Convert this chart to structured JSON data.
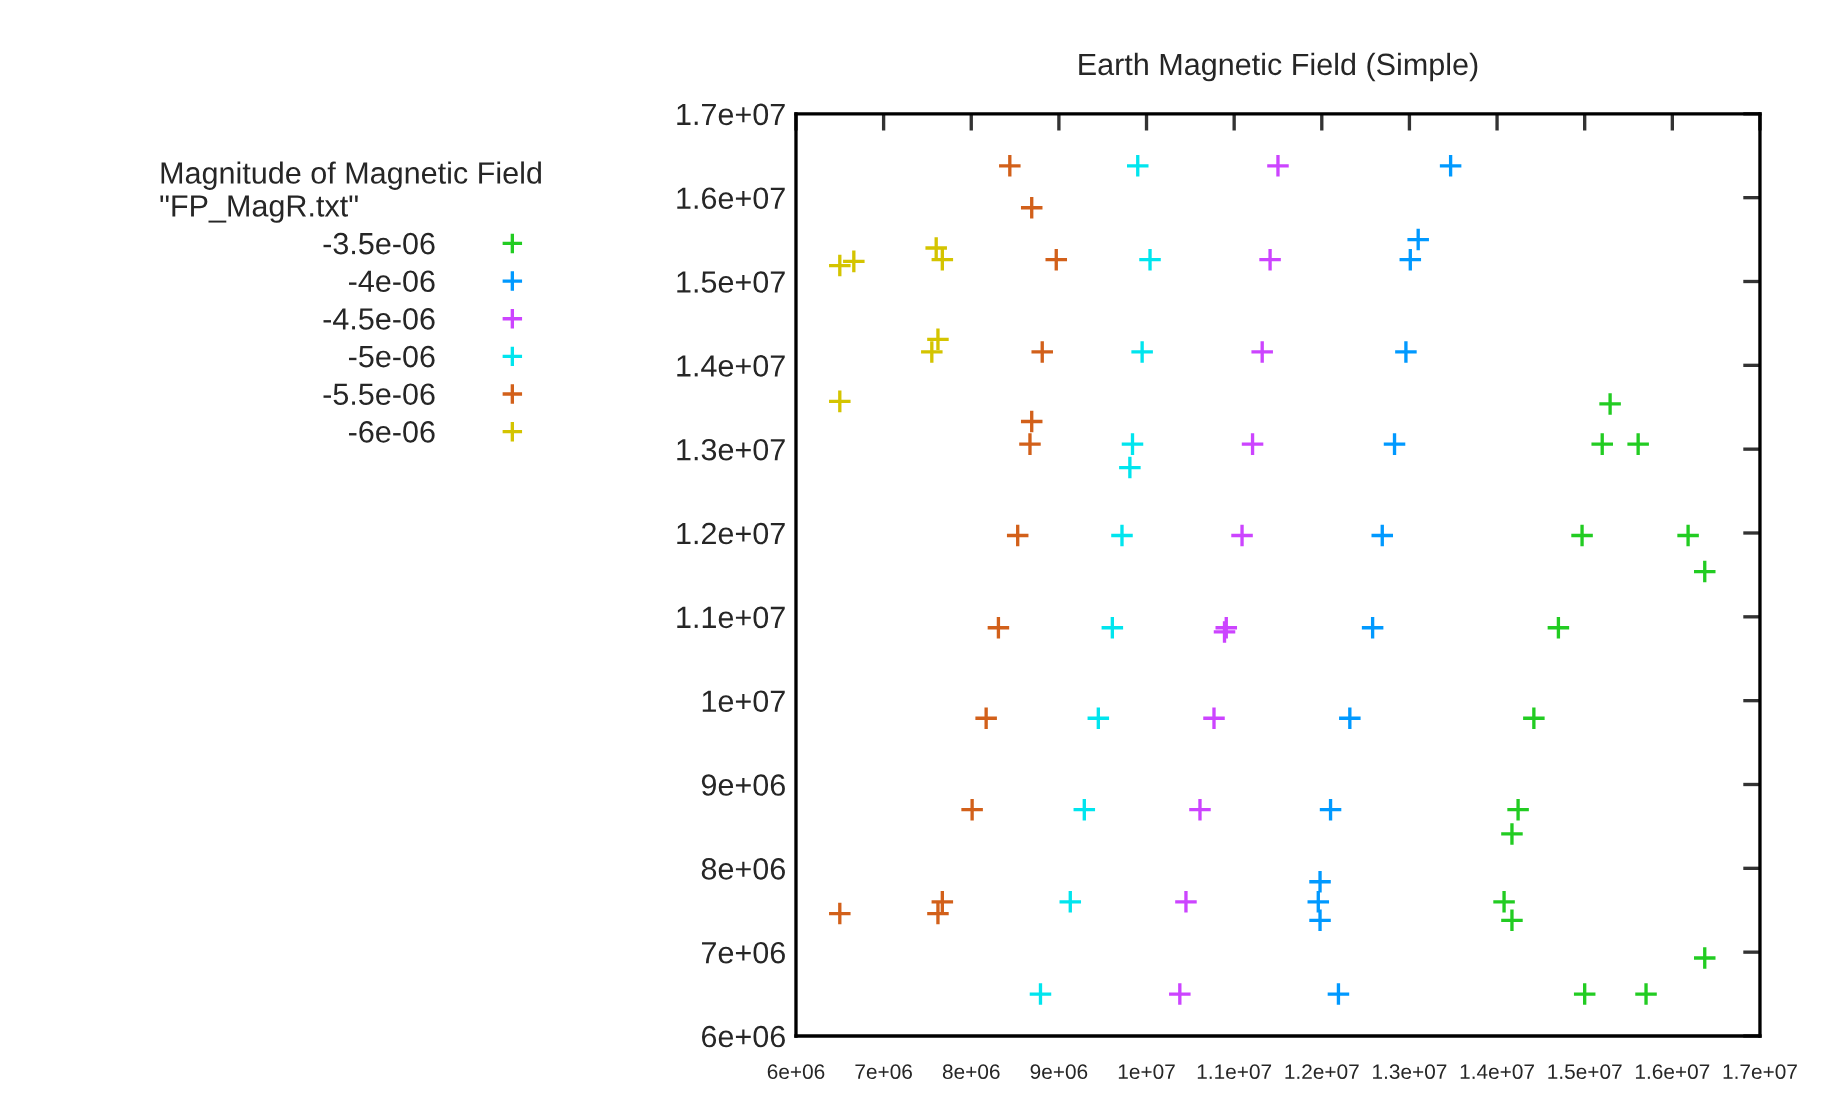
{
  "chart_data": {
    "type": "scatter",
    "title": "Earth Magnetic Field (Simple)",
    "legend_title": "Magnitude of Magnetic Field\n\"FP_MagR.txt\"",
    "legend": "left",
    "marker": "cross",
    "grid": false,
    "xlim": [
      6000000,
      17000000
    ],
    "xticks": [
      {
        "value": 6000000,
        "label": "6e+06"
      },
      {
        "value": 7000000,
        "label": "7e+06"
      },
      {
        "value": 8000000,
        "label": "8e+06"
      },
      {
        "value": 9000000,
        "label": "9e+06"
      },
      {
        "value": 10000000,
        "label": "1e+07"
      },
      {
        "value": 11000000,
        "label": "1.1e+07"
      },
      {
        "value": 12000000,
        "label": "1.2e+07"
      },
      {
        "value": 13000000,
        "label": "1.3e+07"
      },
      {
        "value": 14000000,
        "label": "1.4e+07"
      },
      {
        "value": 15000000,
        "label": "1.5e+07"
      },
      {
        "value": 16000000,
        "label": "1.6e+07"
      },
      {
        "value": 17000000,
        "label": "1.7e+07"
      }
    ],
    "ylim": [
      6000000,
      17000000
    ],
    "yticks": [
      {
        "value": 6000000,
        "label": "6e+06"
      },
      {
        "value": 7000000,
        "label": "7e+06"
      },
      {
        "value": 8000000,
        "label": "8e+06"
      },
      {
        "value": 9000000,
        "label": "9e+06"
      },
      {
        "value": 10000000,
        "label": "1e+07"
      },
      {
        "value": 11000000,
        "label": "1.1e+07"
      },
      {
        "value": 12000000,
        "label": "1.2e+07"
      },
      {
        "value": 13000000,
        "label": "1.3e+07"
      },
      {
        "value": 14000000,
        "label": "1.4e+07"
      },
      {
        "value": 15000000,
        "label": "1.5e+07"
      },
      {
        "value": 16000000,
        "label": "1.6e+07"
      },
      {
        "value": 17000000,
        "label": "1.7e+07"
      }
    ],
    "series": [
      {
        "name": "-3.5e-06",
        "color": "#22cc22",
        "x": [
          15290000,
          15200000,
          15610000,
          14970000,
          16180000,
          16370000,
          14700000,
          14420000,
          14240000,
          14170000,
          14080000,
          14170000,
          16370000,
          15000000,
          15700000
        ],
        "values": [
          13540000,
          13060000,
          13060000,
          11970000,
          11970000,
          11540000,
          10870000,
          9790000,
          8700000,
          8410000,
          7600000,
          7380000,
          6930000,
          6500000,
          6500000
        ]
      },
      {
        "name": "-4e-06",
        "color": "#0099ff",
        "x": [
          13470000,
          13100000,
          13010000,
          12960000,
          12830000,
          12690000,
          12580000,
          12320000,
          12100000,
          11980000,
          11960000,
          11980000,
          12190000
        ],
        "values": [
          16380000,
          15500000,
          15260000,
          14160000,
          13060000,
          11970000,
          10870000,
          9790000,
          8700000,
          7840000,
          7600000,
          7380000,
          6500000
        ]
      },
      {
        "name": "-4.5e-06",
        "color": "#cc44ff",
        "x": [
          11500000,
          11410000,
          11320000,
          11210000,
          11090000,
          10910000,
          10890000,
          10770000,
          10610000,
          10450000,
          10380000
        ],
        "values": [
          16380000,
          15260000,
          14160000,
          13060000,
          11970000,
          10870000,
          10820000,
          9790000,
          8700000,
          7600000,
          6500000
        ]
      },
      {
        "name": "-5e-06",
        "color": "#00e5ee",
        "x": [
          9900000,
          10040000,
          9950000,
          9840000,
          9810000,
          9720000,
          9610000,
          9450000,
          9290000,
          9130000,
          8790000
        ],
        "values": [
          16380000,
          15260000,
          14160000,
          13060000,
          12780000,
          11970000,
          10870000,
          9790000,
          8700000,
          7600000,
          6500000
        ]
      },
      {
        "name": "-5.5e-06",
        "color": "#d2601a",
        "x": [
          8440000,
          8690000,
          8970000,
          8810000,
          8690000,
          8670000,
          8530000,
          8310000,
          8170000,
          8010000,
          7670000,
          7620000,
          6500000
        ],
        "values": [
          16380000,
          15880000,
          15260000,
          14160000,
          13330000,
          13060000,
          11970000,
          10870000,
          9790000,
          8700000,
          7600000,
          7460000,
          7460000
        ]
      },
      {
        "name": "-6e-06",
        "color": "#d4c400",
        "x": [
          6500000,
          6660000,
          7600000,
          7670000,
          7620000,
          7550000,
          6500000
        ],
        "values": [
          15190000,
          15240000,
          15400000,
          15260000,
          14310000,
          14160000,
          13570000
        ]
      }
    ]
  }
}
